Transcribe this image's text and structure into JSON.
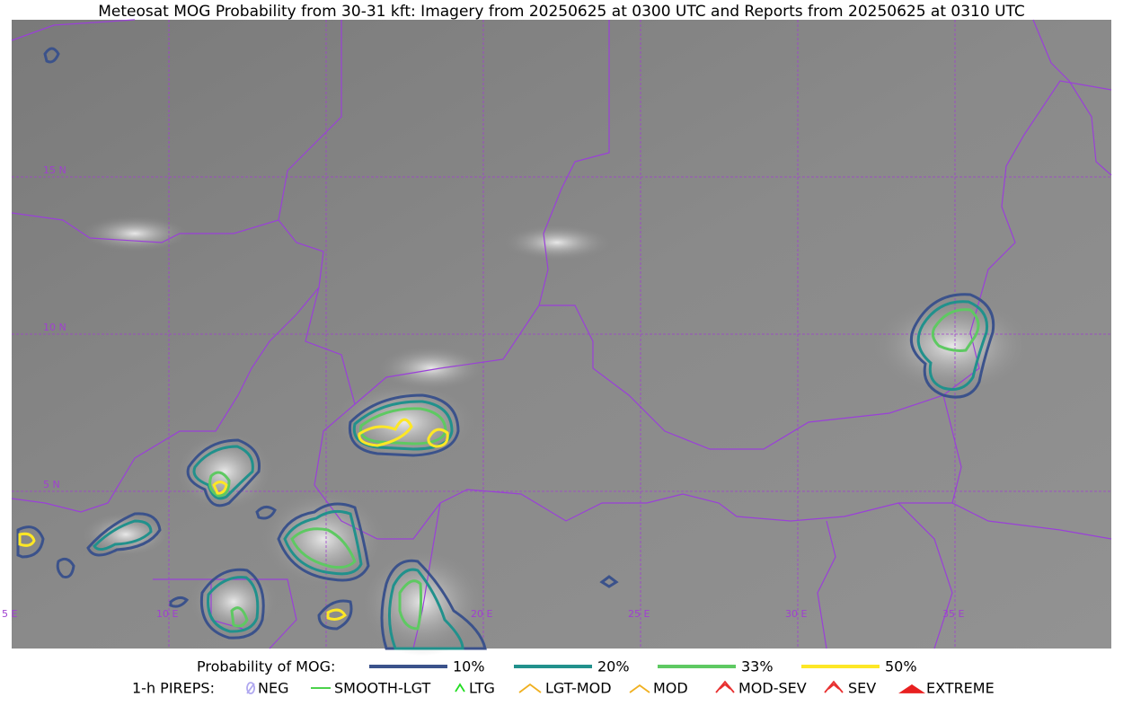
{
  "header": {
    "title": "Meteosat MOG Probability from 30-31 kft: Imagery from 20250625 at 0300 UTC and Reports from 20250625 at 0310 UTC"
  },
  "map": {
    "lat_labels": [
      "15 N",
      "10 N",
      "5 N"
    ],
    "lon_labels": [
      "5 E",
      "10 E",
      "20 E",
      "25 E",
      "30 E",
      "35 E"
    ]
  },
  "legend": {
    "probability": {
      "title": "Probability of MOG:",
      "items": [
        {
          "label": "10%",
          "color": "#3b528b"
        },
        {
          "label": "20%",
          "color": "#21918c"
        },
        {
          "label": "33%",
          "color": "#5ec962"
        },
        {
          "label": "50%",
          "color": "#fde725"
        }
      ]
    },
    "pireps": {
      "title": "1-h PIREPS:",
      "items": [
        {
          "label": "NEG",
          "color": "#b0a8f0"
        },
        {
          "label": "SMOOTH-LGT",
          "color": "#33cc33"
        },
        {
          "label": "LTG",
          "color": "#22dd22"
        },
        {
          "label": "LGT-MOD",
          "color": "#f0b020"
        },
        {
          "label": "MOD",
          "color": "#f0b020"
        },
        {
          "label": "MOD-SEV",
          "color": "#e83030"
        },
        {
          "label": "SEV",
          "color": "#e83030"
        },
        {
          "label": "EXTREME",
          "color": "#e82020"
        }
      ]
    }
  }
}
